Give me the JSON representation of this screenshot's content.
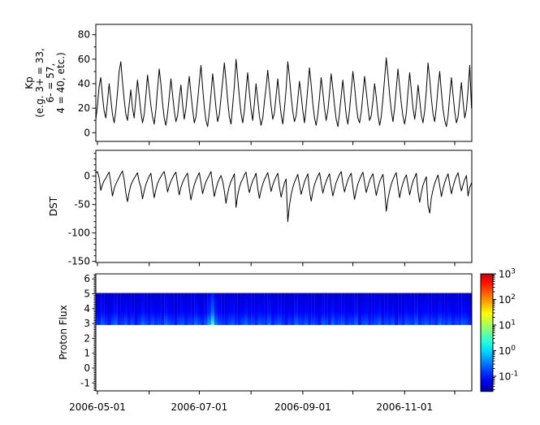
{
  "figure": {
    "background": "#ffffff",
    "line_color": "#000000"
  },
  "x_axis": {
    "start_date": "2006-05-01",
    "month_tick_days": [
      0,
      31,
      61,
      92,
      123,
      153,
      184,
      214
    ],
    "labeled_ticks": [
      {
        "day": 0,
        "label": "2006-05-01"
      },
      {
        "day": 61,
        "label": "2006-07-01"
      },
      {
        "day": 123,
        "label": "2006-09-01"
      },
      {
        "day": 184,
        "label": "2006-11-01"
      }
    ]
  },
  "chart_data": [
    {
      "panel": "kp",
      "type": "line",
      "line_color": "#000000",
      "ylabel_lines": [
        "Kp",
        "(e.g. 3+ = 33,",
        "6- = 57,",
        "4 = 40, etc.)"
      ],
      "yticks": [
        0,
        20,
        40,
        60,
        80
      ],
      "ytick_minor_step": 10,
      "ylim": [
        -7,
        88
      ],
      "x_start_day": -1,
      "x_step_days": 1,
      "values": [
        10,
        22,
        38,
        45,
        30,
        18,
        12,
        25,
        40,
        28,
        15,
        8,
        18,
        33,
        50,
        58,
        42,
        27,
        15,
        10,
        23,
        35,
        20,
        12,
        28,
        43,
        30,
        17,
        8,
        15,
        30,
        47,
        35,
        22,
        13,
        7,
        19,
        36,
        52,
        40,
        24,
        12,
        6,
        16,
        29,
        44,
        31,
        18,
        9,
        14,
        27,
        39,
        23,
        11,
        20,
        34,
        46,
        32,
        19,
        8,
        13,
        26,
        41,
        55,
        37,
        21,
        10,
        5,
        17,
        31,
        48,
        35,
        20,
        9,
        15,
        28,
        42,
        57,
        43,
        26,
        13,
        7,
        22,
        38,
        60,
        45,
        29,
        16,
        8,
        18,
        34,
        49,
        33,
        19,
        10,
        24,
        40,
        27,
        14,
        6,
        12,
        25,
        37,
        51,
        36,
        22,
        11,
        16,
        30,
        44,
        28,
        15,
        7,
        20,
        35,
        58,
        46,
        30,
        17,
        9,
        14,
        27,
        42,
        31,
        18,
        8,
        21,
        37,
        53,
        39,
        24,
        12,
        6,
        15,
        29,
        45,
        33,
        20,
        10,
        18,
        32,
        48,
        36,
        22,
        11,
        5,
        16,
        30,
        43,
        28,
        14,
        7,
        19,
        34,
        50,
        38,
        23,
        12,
        8,
        17,
        31,
        46,
        34,
        21,
        10,
        14,
        26,
        40,
        29,
        15,
        6,
        13,
        28,
        44,
        61,
        47,
        31,
        18,
        9,
        20,
        36,
        52,
        38,
        24,
        13,
        7,
        16,
        33,
        49,
        35,
        20,
        11,
        22,
        39,
        27,
        14,
        8,
        18,
        34,
        57,
        44,
        28,
        15,
        9,
        21,
        37,
        50,
        33,
        19,
        10,
        5,
        14,
        30,
        45,
        31,
        17,
        8,
        13,
        27,
        41,
        25,
        12,
        19,
        35,
        55,
        20
      ]
    },
    {
      "panel": "dst",
      "type": "line",
      "line_color": "#000000",
      "ylabel": "DST",
      "yticks": [
        0,
        -50,
        -100,
        -150
      ],
      "ytick_minor_step": 10,
      "ylim": [
        -152,
        45
      ],
      "x_start_day": -1,
      "x_step_days": 1,
      "values": [
        5,
        8,
        -3,
        -25,
        -15,
        -8,
        -4,
        2,
        7,
        -12,
        -35,
        -22,
        -14,
        -8,
        -2,
        4,
        9,
        -6,
        -30,
        -45,
        -28,
        -16,
        -9,
        -4,
        1,
        6,
        -10,
        -20,
        -40,
        -26,
        -15,
        -7,
        0,
        5,
        -18,
        -38,
        -24,
        -13,
        -6,
        -1,
        4,
        8,
        -8,
        -28,
        -17,
        -9,
        -3,
        3,
        7,
        -14,
        -33,
        -20,
        -11,
        -5,
        1,
        5,
        -22,
        -42,
        -27,
        -15,
        -7,
        0,
        6,
        -11,
        -31,
        -19,
        -10,
        -4,
        2,
        8,
        -16,
        -36,
        -23,
        -12,
        -5,
        1,
        -9,
        -26,
        -48,
        -30,
        -18,
        -9,
        -3,
        4,
        -55,
        -34,
        -20,
        -11,
        -5,
        2,
        7,
        -13,
        -29,
        -17,
        -8,
        -2,
        5,
        -21,
        -39,
        -25,
        -14,
        -6,
        0,
        6,
        -10,
        -27,
        -16,
        -8,
        -1,
        5,
        -19,
        -37,
        -24,
        -12,
        -5,
        -80,
        -52,
        -33,
        -20,
        -11,
        -4,
        3,
        -15,
        -32,
        -21,
        -10,
        -3,
        4,
        -25,
        -44,
        -28,
        -15,
        -7,
        0,
        6,
        -12,
        -30,
        -18,
        -9,
        -2,
        4,
        -17,
        -35,
        -22,
        -11,
        -4,
        3,
        8,
        -13,
        -28,
        -16,
        -7,
        0,
        5,
        -20,
        -41,
        -26,
        -14,
        -6,
        1,
        7,
        -11,
        -29,
        -18,
        -8,
        -1,
        4,
        -16,
        -34,
        -21,
        -10,
        -3,
        3,
        -24,
        -62,
        -40,
        -26,
        -14,
        -6,
        1,
        6,
        -18,
        -38,
        -23,
        -12,
        -4,
        2,
        -15,
        -33,
        -20,
        -9,
        -2,
        5,
        -27,
        -46,
        -29,
        -16,
        -8,
        -1,
        -52,
        -65,
        -38,
        -24,
        -13,
        -5,
        2,
        -17,
        -36,
        -22,
        -11,
        -3,
        4,
        -14,
        -31,
        -19,
        -8,
        0,
        6,
        -12,
        -26,
        -15,
        -6,
        1,
        -35,
        -20,
        -12
      ]
    },
    {
      "panel": "proton_flux",
      "type": "heatmap",
      "ylabel": "Proton Flux",
      "yticks": [
        6,
        5,
        4,
        3,
        2,
        1,
        0,
        -1
      ],
      "ytick_minor_step": 0.1,
      "ylim": [
        -1.6,
        6.3
      ],
      "band_y": [
        2.9,
        5.05
      ],
      "x_start_day": -1,
      "x_step_days": 2,
      "column_intensity": [
        0.3,
        0.2,
        0.35,
        0.25,
        0.15,
        0.3,
        0.4,
        0.2,
        0.25,
        0.35,
        0.2,
        0.3,
        0.15,
        0.25,
        0.4,
        0.3,
        0.2,
        0.35,
        0.25,
        0.3,
        0.2,
        0.4,
        0.3,
        0.25,
        0.15,
        0.3,
        0.35,
        0.2,
        0.3,
        0.25,
        0.4,
        0.3,
        0.2,
        0.35,
        0.55,
        1.0,
        0.45,
        0.3,
        0.25,
        0.2,
        0.3,
        0.35,
        0.25,
        0.2,
        0.3,
        0.4,
        0.25,
        0.3,
        0.2,
        0.35,
        0.3,
        0.25,
        0.4,
        0.2,
        0.3,
        0.35,
        0.25,
        0.15,
        0.3,
        0.2,
        0.4,
        0.3,
        0.25,
        0.35,
        0.2,
        0.3,
        0.25,
        0.15,
        0.35,
        0.3,
        0.2,
        0.4,
        0.25,
        0.3,
        0.35,
        0.2,
        0.3,
        0.25,
        0.4,
        0.15,
        0.3,
        0.35,
        0.2,
        0.25,
        0.3,
        0.4,
        0.2,
        0.3,
        0.25,
        0.35,
        0.15,
        0.3,
        0.2,
        0.35,
        0.3,
        0.25,
        0.4,
        0.2,
        0.3,
        0.35,
        0.25,
        0.3,
        0.2,
        0.4,
        0.3,
        0.25,
        0.35,
        0.2,
        0.3,
        0.25,
        0.35,
        0.3,
        0.2
      ],
      "event": {
        "date": "2006-07-09",
        "note": "bright cyan-green flux enhancement streak"
      },
      "colorbar": {
        "colormap": "jet",
        "scale": "log",
        "mantissa": "10",
        "tick_exponents": [
          "3",
          "2",
          "1",
          "0",
          "-1"
        ]
      }
    }
  ]
}
